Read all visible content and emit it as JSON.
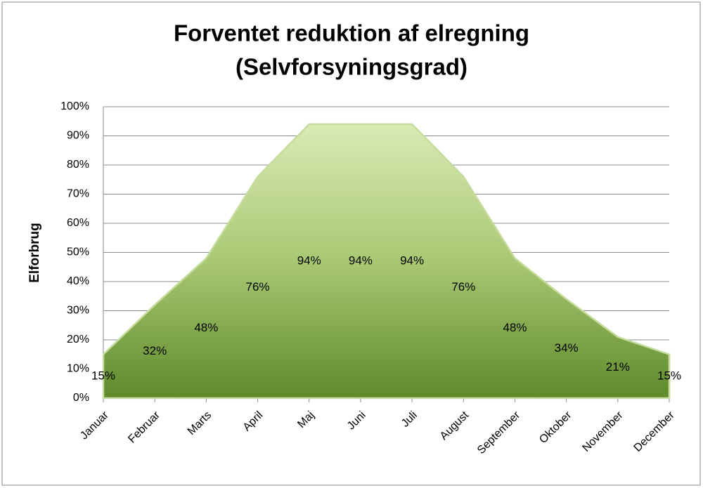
{
  "chart_data": {
    "type": "area",
    "title": "Forventet reduktion af elregning",
    "subtitle": "(Selvforsyningsgrad)",
    "y_label": "Elforbrug",
    "categories": [
      "Januar",
      "Februar",
      "Marts",
      "April",
      "Maj",
      "Juni",
      "Juli",
      "August",
      "September",
      "Oktober",
      "November",
      "December"
    ],
    "values": [
      15,
      32,
      48,
      76,
      94,
      94,
      94,
      76,
      48,
      34,
      21,
      15
    ],
    "value_labels": [
      "15%",
      "32%",
      "48%",
      "76%",
      "94%",
      "94%",
      "94%",
      "76%",
      "48%",
      "34%",
      "21%",
      "15%"
    ],
    "color": "#8db353",
    "ylim": [
      0,
      100
    ],
    "yticks": [
      {
        "value": 0,
        "label": "0%"
      },
      {
        "value": 10,
        "label": "10%"
      },
      {
        "value": 20,
        "label": "20%"
      },
      {
        "value": 30,
        "label": "30%"
      },
      {
        "value": 40,
        "label": "40%"
      },
      {
        "value": 50,
        "label": "50%"
      },
      {
        "value": 60,
        "label": "60%"
      },
      {
        "value": 70,
        "label": "70%"
      },
      {
        "value": 80,
        "label": "80%"
      },
      {
        "value": 90,
        "label": "90%"
      },
      {
        "value": 100,
        "label": "100%"
      }
    ],
    "grid": true
  }
}
